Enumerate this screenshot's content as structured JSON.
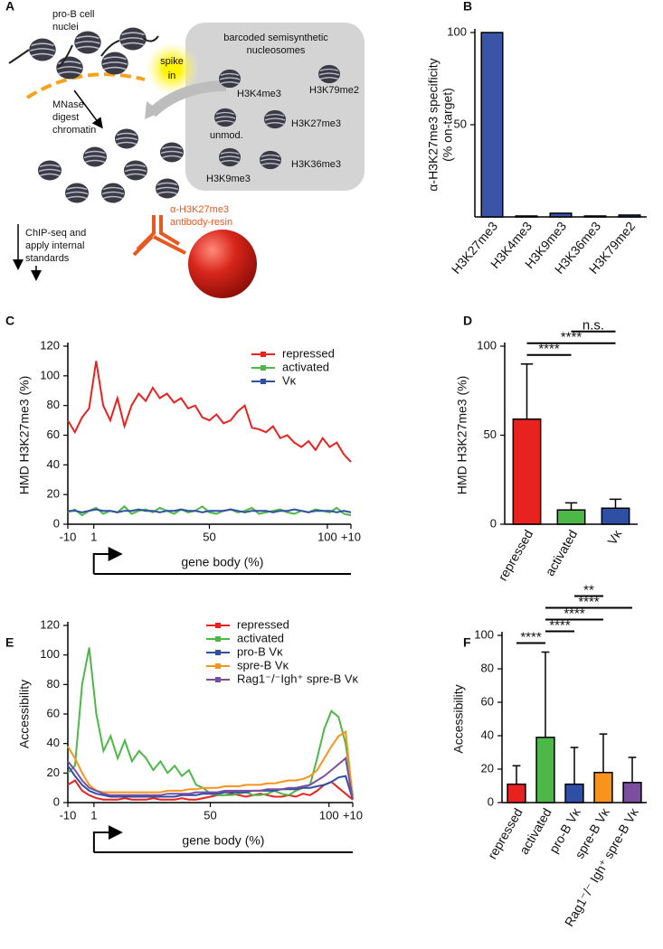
{
  "diagram": {
    "panel": "A",
    "nuclei_label": [
      "pro-B cell",
      "nuclei"
    ],
    "spike_label": [
      "spike",
      "in"
    ],
    "box_title": [
      "barcoded semisynthetic",
      "nucleosomes"
    ],
    "nucleosome_labels": [
      "H3K4me3",
      "H3K79me2",
      "unmod.",
      "H3K27me3",
      "H3K36me3",
      "H3K9me3"
    ],
    "digest_label": [
      "MNase",
      "digest",
      "chromatin"
    ],
    "antibody_label": [
      "α-H3K27me3",
      "antibody-resin"
    ],
    "chip_label": [
      "ChIP-seq and",
      "apply internal",
      "standards"
    ]
  },
  "chart_data": [
    {
      "panel": "B",
      "type": "bar",
      "ylabel": [
        "α-H3K27me3 specificity",
        "(% on-target)"
      ],
      "categories": [
        "H3K27me3",
        "H3K4me3",
        "H3K9me3",
        "H3K36me3",
        "H3K79me2"
      ],
      "values": [
        100,
        0.5,
        2,
        0.5,
        1
      ],
      "color": "#3a55a8",
      "ylim": [
        0,
        100
      ],
      "yticks": [
        50,
        100
      ]
    },
    {
      "panel": "C",
      "type": "line",
      "ylabel": "HMD H3K27me3 (%)",
      "xlabel": "gene body (%)",
      "x": [
        -10,
        -7,
        -4,
        -1,
        2,
        5,
        8,
        11,
        14,
        17,
        20,
        23,
        26,
        29,
        32,
        35,
        38,
        41,
        44,
        47,
        50,
        53,
        56,
        59,
        62,
        65,
        68,
        71,
        74,
        77,
        80,
        83,
        86,
        89,
        92,
        95,
        98,
        101,
        104,
        107,
        110
      ],
      "xlim": [
        -10,
        110
      ],
      "xticks": [
        -10,
        1,
        50,
        100,
        {
          "value": 110,
          "label": "+10"
        }
      ],
      "ylim": [
        0,
        120
      ],
      "yticks": [
        0,
        20,
        40,
        60,
        80,
        100,
        120
      ],
      "legend": "upper right",
      "series": [
        {
          "name": "repressed",
          "color": "#e8231f",
          "values": [
            70,
            62,
            72,
            78,
            110,
            80,
            70,
            85,
            66,
            80,
            88,
            83,
            92,
            85,
            88,
            82,
            85,
            78,
            80,
            72,
            70,
            74,
            68,
            70,
            76,
            80,
            65,
            64,
            62,
            66,
            58,
            60,
            55,
            52,
            56,
            50,
            58,
            52,
            55,
            47,
            42
          ]
        },
        {
          "name": "activated",
          "color": "#4db848",
          "values": [
            8,
            10,
            6,
            9,
            11,
            7,
            9,
            8,
            12,
            7,
            9,
            10,
            8,
            11,
            9,
            7,
            10,
            8,
            9,
            12,
            8,
            7,
            9,
            10,
            8,
            9,
            11,
            7,
            8,
            9,
            10,
            8,
            7,
            9,
            8,
            10,
            9,
            8,
            11,
            7,
            6
          ]
        },
        {
          "name": "Vκ",
          "color": "#2e4fa3",
          "values": [
            9,
            9,
            8,
            9,
            10,
            9,
            9,
            8,
            9,
            9,
            10,
            9,
            9,
            8,
            9,
            9,
            10,
            9,
            9,
            8,
            9,
            9,
            9,
            10,
            9,
            8,
            9,
            9,
            9,
            8,
            9,
            9,
            10,
            9,
            8,
            9,
            9,
            9,
            8,
            9,
            8
          ]
        }
      ]
    },
    {
      "panel": "D",
      "type": "bar",
      "ylabel": "HMD H3K27me3 (%)",
      "categories": [
        "repressed",
        "activated",
        "Vκ"
      ],
      "values": [
        59,
        8,
        9
      ],
      "errors": [
        31,
        4,
        5
      ],
      "colors": [
        "#e8231f",
        "#4db848",
        "#2e4fa3"
      ],
      "ylim": [
        0,
        100
      ],
      "yticks": [
        0,
        50,
        100
      ],
      "annotations": [
        {
          "label": "****",
          "from": 0,
          "to": 1
        },
        {
          "label": "****",
          "from": 0,
          "to": 2
        },
        {
          "label": "n.s.",
          "from": 1,
          "to": 2
        }
      ]
    },
    {
      "panel": "E",
      "type": "line",
      "ylabel": "Accessibility",
      "xlabel": "gene body (%)",
      "x": [
        -10,
        -7,
        -4,
        -1,
        2,
        5,
        8,
        11,
        14,
        17,
        20,
        23,
        26,
        29,
        32,
        35,
        38,
        41,
        44,
        47,
        50,
        53,
        56,
        59,
        62,
        65,
        68,
        71,
        74,
        77,
        80,
        83,
        86,
        89,
        92,
        95,
        98,
        101,
        104,
        107,
        110
      ],
      "xlim": [
        -10,
        110
      ],
      "xticks": [
        -10,
        1,
        50,
        100,
        {
          "value": 110,
          "label": "+10"
        }
      ],
      "ylim": [
        0,
        120
      ],
      "yticks": [
        0,
        20,
        40,
        60,
        80,
        100,
        120
      ],
      "legend": "upper right",
      "series": [
        {
          "name": "repressed",
          "color": "#e8231f",
          "values": [
            12,
            15,
            8,
            5,
            3,
            2,
            2,
            2,
            3,
            2,
            2,
            2,
            3,
            2,
            2,
            2,
            3,
            2,
            2,
            3,
            4,
            5,
            5,
            6,
            5,
            4,
            5,
            6,
            5,
            4,
            4,
            5,
            4,
            6,
            5,
            8,
            12,
            14,
            10,
            6,
            2
          ]
        },
        {
          "name": "activated",
          "color": "#4db848",
          "values": [
            20,
            25,
            80,
            105,
            60,
            35,
            45,
            30,
            42,
            28,
            35,
            30,
            22,
            28,
            20,
            25,
            18,
            22,
            12,
            10,
            6,
            5,
            5,
            5,
            6,
            7,
            5,
            5,
            6,
            8,
            6,
            5,
            8,
            10,
            12,
            30,
            50,
            62,
            58,
            40,
            5
          ]
        },
        {
          "name": "pro-B Vκ",
          "color": "#2e4fa3",
          "values": [
            25,
            18,
            12,
            8,
            6,
            5,
            4,
            4,
            4,
            4,
            4,
            4,
            4,
            4,
            4,
            4,
            5,
            5,
            5,
            6,
            6,
            6,
            7,
            7,
            7,
            7,
            8,
            8,
            8,
            8,
            9,
            9,
            9,
            10,
            10,
            11,
            12,
            14,
            17,
            18,
            2
          ]
        },
        {
          "name": "spre-B Vκ",
          "color": "#f7941d",
          "values": [
            38,
            30,
            20,
            12,
            8,
            7,
            7,
            7,
            7,
            7,
            7,
            7,
            7,
            7,
            8,
            8,
            8,
            9,
            9,
            10,
            10,
            10,
            11,
            11,
            11,
            12,
            12,
            12,
            13,
            13,
            14,
            15,
            15,
            16,
            18,
            22,
            30,
            38,
            45,
            48,
            3
          ]
        },
        {
          "name": "Rag1⁻/⁻Igh⁺ spre-B Vκ",
          "color": "#7b4fa0",
          "values": [
            28,
            22,
            15,
            10,
            8,
            6,
            5,
            5,
            5,
            5,
            5,
            5,
            5,
            5,
            6,
            6,
            6,
            6,
            7,
            7,
            7,
            7,
            8,
            8,
            8,
            8,
            8,
            8,
            9,
            9,
            9,
            10,
            10,
            11,
            12,
            15,
            18,
            22,
            26,
            30,
            2
          ]
        }
      ]
    },
    {
      "panel": "F",
      "type": "bar",
      "ylabel": "Accessibility",
      "categories": [
        "repressed",
        "activated",
        "pro-B Vκ",
        "spre-B Vκ",
        "Rag1⁻/⁻ Igh⁺ spre-B Vκ"
      ],
      "values": [
        11,
        39,
        11,
        18,
        12
      ],
      "errors": [
        11,
        51,
        22,
        23,
        15
      ],
      "colors": [
        "#e8231f",
        "#4db848",
        "#2e4fa3",
        "#f7941d",
        "#7b4fa0"
      ],
      "ylim": [
        0,
        100
      ],
      "yticks": [
        0,
        20,
        40,
        60,
        80,
        100
      ],
      "annotations": [
        {
          "label": "****",
          "from": 0,
          "to": 1
        },
        {
          "label": "****",
          "from": 1,
          "to": 2
        },
        {
          "label": "****",
          "from": 1,
          "to": 3
        },
        {
          "label": "****",
          "from": 1,
          "to": 4
        },
        {
          "label": "**",
          "from": 2,
          "to": 3
        }
      ]
    }
  ]
}
